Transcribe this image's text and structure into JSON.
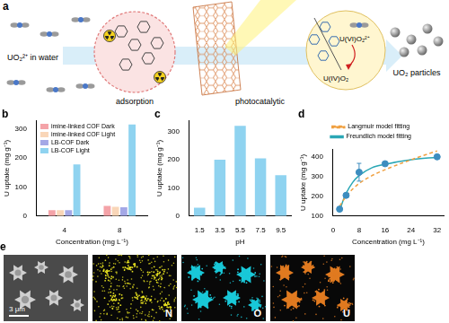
{
  "panel_labels": [
    "a",
    "b",
    "c",
    "d",
    "e"
  ],
  "schematic": {
    "inlet": "UO₂²⁺ in water",
    "adsorption": "adsorption",
    "photocatalysis": "photocatalytic",
    "oxidized": "U(VI)O₂²⁺",
    "reduced": "U(IV)O₂",
    "product": "UO₂ particles"
  },
  "chart_data": [
    {
      "type": "bar",
      "xlabel": "Concentration (mg L⁻¹)",
      "ylabel": "U uptake (mg g⁻¹)",
      "categories": [
        "4",
        "8"
      ],
      "series": [
        {
          "name": "imine-linked COF Dark",
          "color": "#f4a3a8",
          "values": [
            20,
            35
          ]
        },
        {
          "name": "imine-linked COF Light",
          "color": "#f9d6b8",
          "values": [
            20,
            32
          ]
        },
        {
          "name": "LB-COF Dark",
          "color": "#a4a8e6",
          "values": [
            20,
            30
          ]
        },
        {
          "name": "LB-COF Light",
          "color": "#8fd3f0",
          "values": [
            178,
            315
          ]
        }
      ],
      "ylim": [
        0,
        330
      ],
      "yticks": [
        0,
        100,
        200,
        300
      ],
      "legend": "upper left",
      "grid": false
    },
    {
      "type": "bar",
      "xlabel": "pH",
      "ylabel": "U uptake (mg g⁻¹)",
      "categories": [
        "1.5",
        "3.5",
        "5.5",
        "7.5",
        "9.5"
      ],
      "values": [
        30,
        200,
        320,
        205,
        145
      ],
      "color": "#8fd3f0",
      "ylim": [
        0,
        340
      ],
      "yticks": [
        0,
        100,
        200,
        300
      ],
      "grid": false
    },
    {
      "type": "scatter",
      "xlabel": "Concentration (mg L⁻¹)",
      "ylabel": "U uptake (mg g⁻¹)",
      "series": [
        {
          "color": "#3d8dbf",
          "marker": "circle",
          "x": [
            2,
            4,
            8,
            16,
            32
          ],
          "values": [
            135,
            205,
            322,
            365,
            400
          ],
          "errors": [
            0,
            0,
            45,
            0,
            0
          ]
        },
        {
          "name": "Langmuir model fitting",
          "type": "line",
          "line_style": "dashed",
          "color": "#f0a040",
          "x": [
            2,
            4,
            8,
            12,
            16,
            24,
            32
          ],
          "values": [
            150,
            200,
            265,
            305,
            335,
            385,
            430
          ]
        },
        {
          "name": "Freundlich model fitting",
          "type": "line",
          "line_style": "solid",
          "color": "#2aa7b5",
          "x": [
            2,
            3,
            4,
            6,
            8,
            12,
            16,
            24,
            32
          ],
          "values": [
            125,
            175,
            215,
            270,
            305,
            345,
            362,
            385,
            398
          ]
        }
      ],
      "xlim": [
        0,
        34
      ],
      "xticks": [
        0,
        8,
        16,
        24,
        32
      ],
      "ylim": [
        100,
        440
      ],
      "yticks": [
        100,
        200,
        300,
        400
      ],
      "legend": "top",
      "grid": false
    }
  ],
  "micrographs": {
    "scale_bar": "3 μm",
    "maps": [
      {
        "element": "N",
        "color": "#e6e020"
      },
      {
        "element": "O",
        "color": "#19c8d8"
      },
      {
        "element": "U",
        "color": "#e07a20"
      }
    ]
  }
}
